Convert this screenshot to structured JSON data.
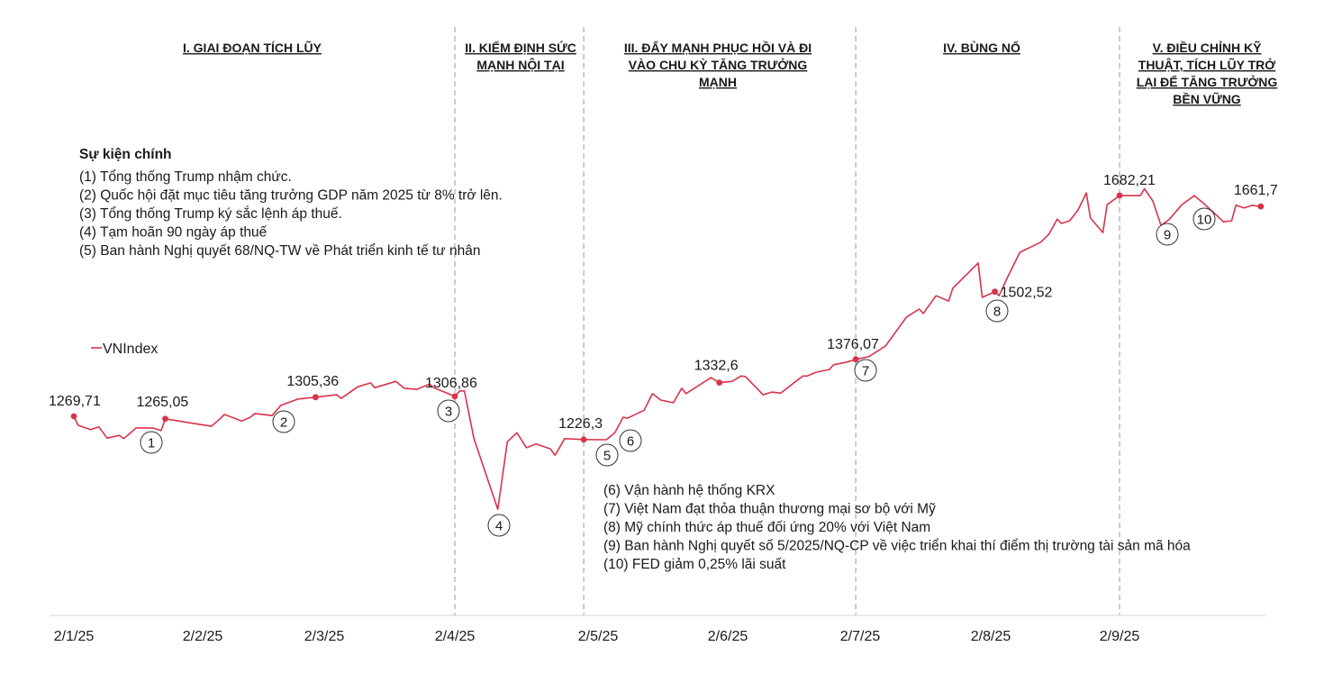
{
  "chart_data": {
    "type": "line",
    "title": "",
    "xlabel": "",
    "ylabel": "",
    "grid": false,
    "legend": {
      "placement": "left",
      "entries": [
        "VNIndex"
      ]
    },
    "series": [
      {
        "name": "VNIndex",
        "color": "#d8334b",
        "points": [
          [
            "2025-01-02",
            1269.71
          ],
          [
            "2025-01-03",
            1253
          ],
          [
            "2025-01-06",
            1245
          ],
          [
            "2025-01-08",
            1250
          ],
          [
            "2025-01-10",
            1229
          ],
          [
            "2025-01-13",
            1234
          ],
          [
            "2025-01-14",
            1228
          ],
          [
            "2025-01-17",
            1248
          ],
          [
            "2025-01-21",
            1248
          ],
          [
            "2025-01-23",
            1243
          ],
          [
            "2025-01-24",
            1265.05
          ],
          [
            "2025-02-04",
            1251
          ],
          [
            "2025-02-06",
            1265
          ],
          [
            "2025-02-07",
            1273
          ],
          [
            "2025-02-11",
            1261
          ],
          [
            "2025-02-13",
            1268
          ],
          [
            "2025-02-14",
            1275
          ],
          [
            "2025-02-18",
            1271
          ],
          [
            "2025-02-20",
            1290
          ],
          [
            "2025-02-24",
            1302
          ],
          [
            "2025-02-28",
            1305.36
          ],
          [
            "2025-03-05",
            1310
          ],
          [
            "2025-03-06",
            1303
          ],
          [
            "2025-03-10",
            1325
          ],
          [
            "2025-03-13",
            1332
          ],
          [
            "2025-03-14",
            1323
          ],
          [
            "2025-03-19",
            1335
          ],
          [
            "2025-03-21",
            1322
          ],
          [
            "2025-03-24",
            1320
          ],
          [
            "2025-03-27",
            1330
          ],
          [
            "2025-03-28",
            1323
          ],
          [
            "2025-04-02",
            1306.86
          ],
          [
            "2025-04-03",
            1317
          ],
          [
            "2025-04-04",
            1317
          ],
          [
            "2025-04-06",
            1228
          ],
          [
            "2025-04-11",
            1096
          ],
          [
            "2025-04-13",
            1222
          ],
          [
            "2025-04-15",
            1239
          ],
          [
            "2025-04-17",
            1211
          ],
          [
            "2025-04-19",
            1218
          ],
          [
            "2025-04-22",
            1209
          ],
          [
            "2025-04-23",
            1197
          ],
          [
            "2025-04-25",
            1228
          ],
          [
            "2025-04-29",
            1226.3
          ],
          [
            "2025-05-04",
            1226
          ],
          [
            "2025-05-06",
            1239
          ],
          [
            "2025-05-08",
            1268
          ],
          [
            "2025-05-09",
            1266
          ],
          [
            "2025-05-13",
            1281
          ],
          [
            "2025-05-15",
            1312
          ],
          [
            "2025-05-17",
            1300
          ],
          [
            "2025-05-20",
            1295
          ],
          [
            "2025-05-22",
            1322
          ],
          [
            "2025-05-23",
            1312
          ],
          [
            "2025-05-29",
            1342
          ],
          [
            "2025-05-31",
            1332.6
          ],
          [
            "2025-06-03",
            1335
          ],
          [
            "2025-06-05",
            1345
          ],
          [
            "2025-06-06",
            1344
          ],
          [
            "2025-06-10",
            1310
          ],
          [
            "2025-06-12",
            1315
          ],
          [
            "2025-06-14",
            1313
          ],
          [
            "2025-06-19",
            1345
          ],
          [
            "2025-06-20",
            1345
          ],
          [
            "2025-06-22",
            1352
          ],
          [
            "2025-06-25",
            1357
          ],
          [
            "2025-06-26",
            1366
          ],
          [
            "2025-06-29",
            1371
          ],
          [
            "2025-07-01",
            1376.07
          ],
          [
            "2025-07-04",
            1381
          ],
          [
            "2025-07-08",
            1401
          ],
          [
            "2025-07-13",
            1455
          ],
          [
            "2025-07-16",
            1470
          ],
          [
            "2025-07-17",
            1462
          ],
          [
            "2025-07-20",
            1495
          ],
          [
            "2025-07-23",
            1485
          ],
          [
            "2025-07-24",
            1509
          ],
          [
            "2025-07-30",
            1556
          ],
          [
            "2025-07-31",
            1492
          ],
          [
            "2025-08-03",
            1502.52
          ],
          [
            "2025-08-04",
            1495
          ],
          [
            "2025-08-06",
            1529
          ],
          [
            "2025-08-09",
            1576
          ],
          [
            "2025-08-14",
            1595
          ],
          [
            "2025-08-16",
            1610
          ],
          [
            "2025-08-18",
            1638
          ],
          [
            "2025-08-19",
            1630
          ],
          [
            "2025-08-21",
            1635
          ],
          [
            "2025-08-23",
            1655
          ],
          [
            "2025-08-25",
            1687
          ],
          [
            "2025-08-26",
            1640
          ],
          [
            "2025-08-29",
            1613
          ],
          [
            "2025-08-30",
            1665
          ],
          [
            "2025-09-02",
            1682.21
          ],
          [
            "2025-09-07",
            1682
          ],
          [
            "2025-09-08",
            1695
          ],
          [
            "2025-09-10",
            1672
          ],
          [
            "2025-09-12",
            1626
          ],
          [
            "2025-09-14",
            1638
          ],
          [
            "2025-09-17",
            1665
          ],
          [
            "2025-09-20",
            1682
          ],
          [
            "2025-09-22",
            1669
          ],
          [
            "2025-09-25",
            1648
          ],
          [
            "2025-09-27",
            1633
          ],
          [
            "2025-09-29",
            1635
          ],
          [
            "2025-09-30",
            1664
          ],
          [
            "2025-10-02",
            1659
          ],
          [
            "2025-10-04",
            1664
          ],
          [
            "2025-10-06",
            1661.7
          ]
        ]
      }
    ],
    "x_ticks": [
      {
        "date": "2025-01-02",
        "label": "2/1/25"
      },
      {
        "date": "2025-02-02",
        "label": "2/2/25"
      },
      {
        "date": "2025-03-02",
        "label": "2/3/25"
      },
      {
        "date": "2025-04-02",
        "label": "2/4/25"
      },
      {
        "date": "2025-05-02",
        "label": "2/5/25"
      },
      {
        "date": "2025-06-02",
        "label": "2/6/25"
      },
      {
        "date": "2025-07-02",
        "label": "2/7/25"
      },
      {
        "date": "2025-08-02",
        "label": "2/8/25"
      },
      {
        "date": "2025-09-02",
        "label": "2/9/25"
      }
    ],
    "ylim": [
      1050,
      1750
    ],
    "value_labels": [
      {
        "date": "2025-01-02",
        "value": 1269.71,
        "label": "1269,71"
      },
      {
        "date": "2025-01-24",
        "value": 1265.05,
        "label": "1265,05"
      },
      {
        "date": "2025-02-28",
        "value": 1305.36,
        "label": "1305,36"
      },
      {
        "date": "2025-04-02",
        "value": 1306.86,
        "label": "1306,86"
      },
      {
        "date": "2025-04-29",
        "value": 1226.3,
        "label": "1226,3"
      },
      {
        "date": "2025-05-31",
        "value": 1332.6,
        "label": "1332,6"
      },
      {
        "date": "2025-07-01",
        "value": 1376.07,
        "label": "1376,07"
      },
      {
        "date": "2025-08-03",
        "value": 1502.52,
        "label": "1502,52"
      },
      {
        "date": "2025-09-02",
        "value": 1682.21,
        "label": "1682,21"
      },
      {
        "date": "2025-10-06",
        "value": 1661.7,
        "label": "1661,7"
      }
    ],
    "phase_dividers": [
      "2025-04-02",
      "2025-04-29",
      "2025-07-01",
      "2025-09-02"
    ],
    "phases": [
      {
        "lines": [
          "I. GIAI ĐOẠN TÍCH LŨY"
        ]
      },
      {
        "lines": [
          "II. KIỂM ĐỊNH SỨC",
          "MẠNH NỘI TẠI"
        ]
      },
      {
        "lines": [
          "III. ĐẨY MẠNH PHỤC HỒI VÀ ĐI",
          "VÀO CHU KỲ TĂNG TRƯỞNG",
          "MẠNH"
        ]
      },
      {
        "lines": [
          "IV. BÙNG NỔ"
        ]
      },
      {
        "lines": [
          "V. ĐIỀU CHỈNH KỸ",
          "THUẬT, TÍCH LŨY TRỞ",
          "LẠI ĐỂ TĂNG TRƯỞNG",
          "BỀN VỮNG"
        ]
      }
    ],
    "events_title": "Sự kiện chính",
    "events": [
      {
        "num": "1",
        "text": "(1) Tổng thống Trump nhậm chức."
      },
      {
        "num": "2",
        "text": "(2) Quốc hội đặt mục tiêu tăng trưởng GDP năm 2025 từ 8% trở lên."
      },
      {
        "num": "3",
        "text": "(3) Tổng thống Trump ký sắc lệnh áp thuế."
      },
      {
        "num": "4",
        "text": "(4) Tạm hoãn 90 ngày áp thuế"
      },
      {
        "num": "5",
        "text": "(5) Ban hành Nghị quyết 68/NQ-TW về Phát triển kinh tế tư nhân"
      },
      {
        "num": "6",
        "text": "(6) Vận hành hệ thống KRX"
      },
      {
        "num": "7",
        "text": "(7) Việt Nam đạt thỏa thuận thương mại sơ bộ với Mỹ"
      },
      {
        "num": "8",
        "text": "(8) Mỹ chính thức áp thuế đối ứng 20% với Việt Nam"
      },
      {
        "num": "9",
        "text": "(9) Ban hành Nghị quyết số 5/2025/NQ-CP về việc triển khai thí điểm thị trường tài sản mã hóa"
      },
      {
        "num": "10",
        "text": "(10) FED giảm 0,25% lãi suất"
      }
    ]
  }
}
